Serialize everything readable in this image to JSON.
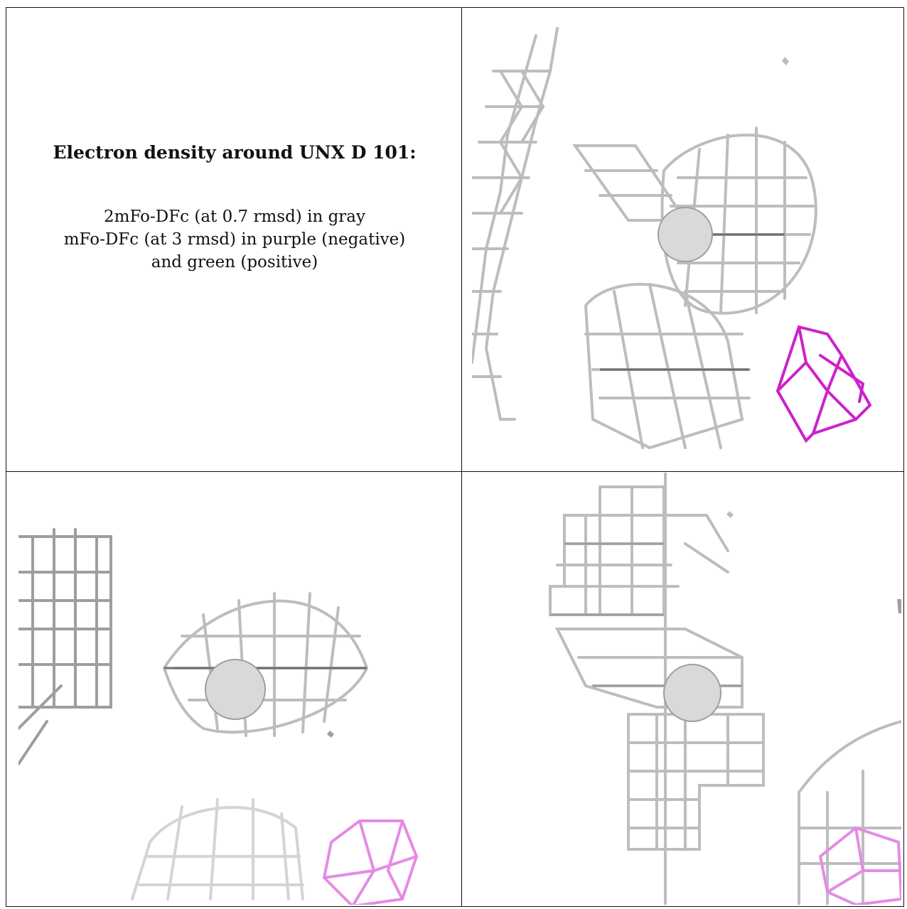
{
  "caption": {
    "title": "Electron density around UNX D 101:",
    "line1": "2mFo-DFc (at 0.7 rmsd) in gray",
    "line2": "mFo-DFc (at 3 rmsd) in purple (negative)",
    "line3": "and green (positive)"
  },
  "colors": {
    "density_gray": "#bdbdbd",
    "density_dark": "#6f6f6f",
    "negative_purple": "#cc22cc",
    "negative_purple_light": "#e58be5",
    "atom_sphere": "#d9d9d9"
  },
  "panels": [
    {
      "name": "view-top-right",
      "contents": "gray-mesh, sphere, purple-mesh"
    },
    {
      "name": "view-bottom-left",
      "contents": "gray-mesh, sphere, purple-mesh"
    },
    {
      "name": "view-bottom-right",
      "contents": "gray-mesh, sphere, purple-mesh"
    }
  ]
}
